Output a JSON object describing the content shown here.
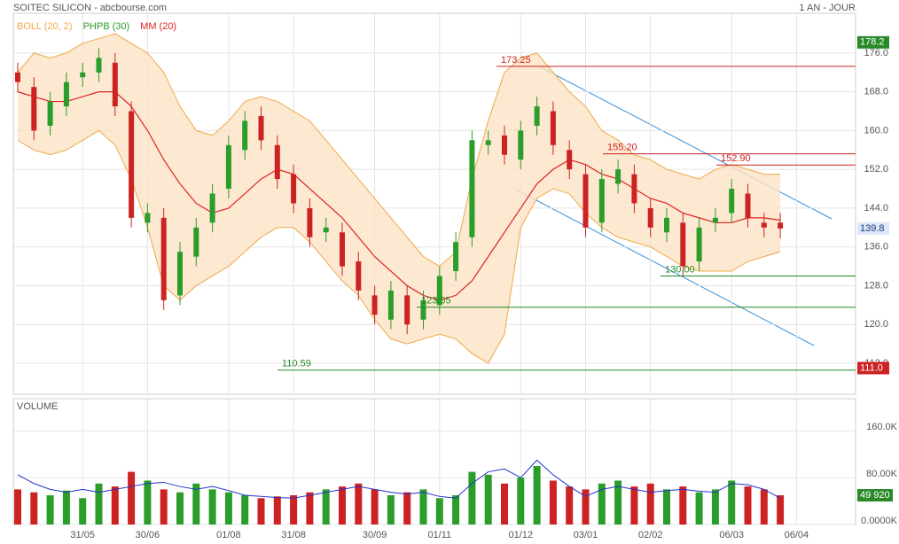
{
  "chart_data": {
    "type": "candlestick",
    "title": "SOITEC SILICON - abcbourse.com",
    "period": "1 AN - JOUR",
    "legend": [
      {
        "name": "BOLL (20, 2)",
        "color": "#f0a848"
      },
      {
        "name": "PHPB (30)",
        "color": "#2a9d2a"
      },
      {
        "name": "MM (20)",
        "color": "#dd2222"
      }
    ],
    "categories": [
      null,
      null,
      null,
      null,
      "31/05",
      null,
      null,
      null,
      "30/06",
      null,
      null,
      null,
      null,
      "01/08",
      null,
      null,
      null,
      "31/08",
      null,
      null,
      null,
      null,
      "30/09",
      null,
      null,
      null,
      "01/11",
      null,
      null,
      null,
      null,
      "01/12",
      null,
      null,
      null,
      "03/01",
      null,
      null,
      null,
      "02/02",
      null,
      null,
      null,
      null,
      "06/03",
      null,
      null,
      null,
      "06/04"
    ],
    "open": [
      172,
      169,
      161,
      165,
      171,
      172,
      174,
      164,
      141,
      142,
      126,
      134,
      141,
      148,
      156,
      163,
      157,
      151,
      144,
      139,
      139,
      133,
      126,
      121,
      126,
      121,
      124,
      131,
      138,
      157,
      159,
      154,
      161,
      164,
      156,
      151,
      141,
      149,
      151,
      144,
      139,
      141,
      133,
      141,
      143,
      147,
      141,
      141,
      null
    ],
    "high": [
      174,
      171,
      168,
      172,
      174,
      177,
      176,
      166,
      145,
      144,
      137,
      142,
      149,
      159,
      164,
      165,
      159,
      153,
      146,
      142,
      141,
      135,
      128,
      129,
      128,
      127,
      132,
      139,
      160,
      160,
      161,
      162,
      167,
      166,
      158,
      153,
      152,
      154,
      153,
      146,
      144,
      143,
      142,
      144,
      150,
      149,
      143,
      143,
      null
    ],
    "low": [
      168,
      158,
      159,
      163,
      169,
      170,
      163,
      140,
      139,
      123,
      124,
      132,
      139,
      146,
      154,
      156,
      148,
      143,
      136,
      137,
      130,
      125,
      120,
      119,
      118,
      119,
      122,
      129,
      136,
      155,
      153,
      152,
      159,
      155,
      150,
      138,
      139,
      147,
      143,
      138,
      137,
      130,
      131,
      139,
      141,
      140,
      138,
      137.8,
      null
    ],
    "close": [
      170,
      160,
      166,
      170,
      172,
      175,
      165,
      142,
      143,
      125,
      135,
      140,
      147,
      157,
      162,
      158,
      150,
      145,
      138,
      140,
      132,
      127,
      122,
      127,
      120,
      125,
      130,
      137,
      158,
      158,
      155,
      160,
      165,
      157,
      152,
      140,
      150,
      152,
      145,
      140,
      142,
      132,
      140,
      142,
      148,
      142,
      140,
      139.8,
      null
    ],
    "mm": [
      168,
      167,
      166,
      166,
      167,
      168,
      168,
      165,
      160,
      154,
      149,
      145,
      143,
      144,
      147,
      150,
      152,
      151,
      148,
      145,
      142,
      138,
      134,
      131,
      128,
      126,
      125,
      126,
      129,
      134,
      139,
      144,
      149,
      152,
      154,
      153,
      151,
      150,
      148,
      146,
      145,
      143,
      142,
      141,
      141,
      142,
      142,
      141.5,
      null
    ],
    "bollinger_upper": [
      172,
      176,
      175,
      176,
      178,
      179,
      180,
      178,
      176,
      172,
      165,
      160,
      159,
      162,
      166,
      167,
      166,
      164,
      162,
      158,
      154,
      150,
      146,
      142,
      138,
      134,
      132,
      135,
      150,
      162,
      172,
      175,
      176,
      172,
      168,
      165,
      160,
      158,
      155,
      154,
      152,
      151,
      150,
      152,
      153,
      152,
      151,
      151,
      null
    ],
    "bollinger_lower": [
      158,
      156,
      155,
      156,
      158,
      160,
      157,
      150,
      140,
      128,
      125,
      128,
      130,
      132,
      135,
      138,
      140,
      140,
      137,
      133,
      129,
      126,
      121,
      117,
      116,
      117,
      118,
      117,
      114,
      112,
      118,
      140,
      146,
      148,
      147,
      143,
      140,
      138,
      137,
      136,
      134,
      132,
      131,
      131,
      131,
      133,
      134,
      135,
      null
    ],
    "ylim": [
      105.6,
      184.2
    ],
    "yticks": [
      {
        "value": 112,
        "label": "112.0"
      },
      {
        "value": 120,
        "label": "120.0"
      },
      {
        "value": 128,
        "label": "128.0"
      },
      {
        "value": 136,
        "label": "136.0"
      },
      {
        "value": 144,
        "label": "144.0"
      },
      {
        "value": 152,
        "label": "152.0"
      },
      {
        "value": 160,
        "label": "160.0"
      },
      {
        "value": 168,
        "label": "168.0"
      },
      {
        "value": 176,
        "label": "176.0"
      }
    ],
    "levels": [
      {
        "value": 173.25,
        "color": "#cc2222"
      },
      {
        "value": 155.2,
        "label": "155.20",
        "color": "#cc2222"
      },
      {
        "value": 152.9,
        "label": "152.90",
        "color": "#cc2222"
      },
      {
        "value": 130,
        "label": "130.00",
        "color": "#228822"
      },
      {
        "value": 123.55,
        "color": "#228822"
      },
      {
        "value": 110.59,
        "color": "#228822"
      }
    ],
    "price_labels": [
      {
        "value": 178.2,
        "color": "#2a8a2a",
        "text_color": "#ffffff"
      },
      {
        "value": 139.8,
        "color": "#dce8f8",
        "text_color": "#1a3a7a"
      },
      {
        "value": 111,
        "label": "111.0",
        "color": "#cc2222",
        "text_color": "#ffffff"
      }
    ],
    "volume_title": "VOLUME",
    "volume": [
      60000,
      55000,
      50000,
      58000,
      45000,
      70000,
      65000,
      90000,
      75000,
      60000,
      55000,
      70000,
      60000,
      55000,
      50000,
      45000,
      48000,
      50000,
      55000,
      60000,
      65000,
      70000,
      60000,
      50000,
      55000,
      60000,
      45000,
      50000,
      90000,
      85000,
      70000,
      80000,
      100000,
      75000,
      65000,
      60000,
      70000,
      75000,
      65000,
      70000,
      60000,
      65000,
      55000,
      60000,
      75000,
      65000,
      60000,
      49920,
      null
    ],
    "volume_value_labels": {
      "47": "49 920"
    },
    "volume_ma": [
      85000,
      70000,
      60000,
      55000,
      60000,
      55000,
      60000,
      65000,
      70000,
      72000,
      65000,
      60000,
      65000,
      58000,
      50000,
      48000,
      46000,
      45000,
      50000,
      55000,
      60000,
      65000,
      60000,
      55000,
      52000,
      55000,
      48000,
      45000,
      70000,
      90000,
      95000,
      80000,
      110000,
      85000,
      65000,
      48000,
      60000,
      65000,
      60000,
      55000,
      58000,
      60000,
      57000,
      55000,
      70000,
      68000,
      60000,
      45000,
      null
    ],
    "vlim": [
      0,
      215000
    ],
    "vticks": [
      {
        "value": 0,
        "label": "0.0000K"
      },
      {
        "value": 80000,
        "label": "80.00K"
      },
      {
        "value": 160000,
        "label": "160.0K"
      }
    ],
    "grid": true
  }
}
